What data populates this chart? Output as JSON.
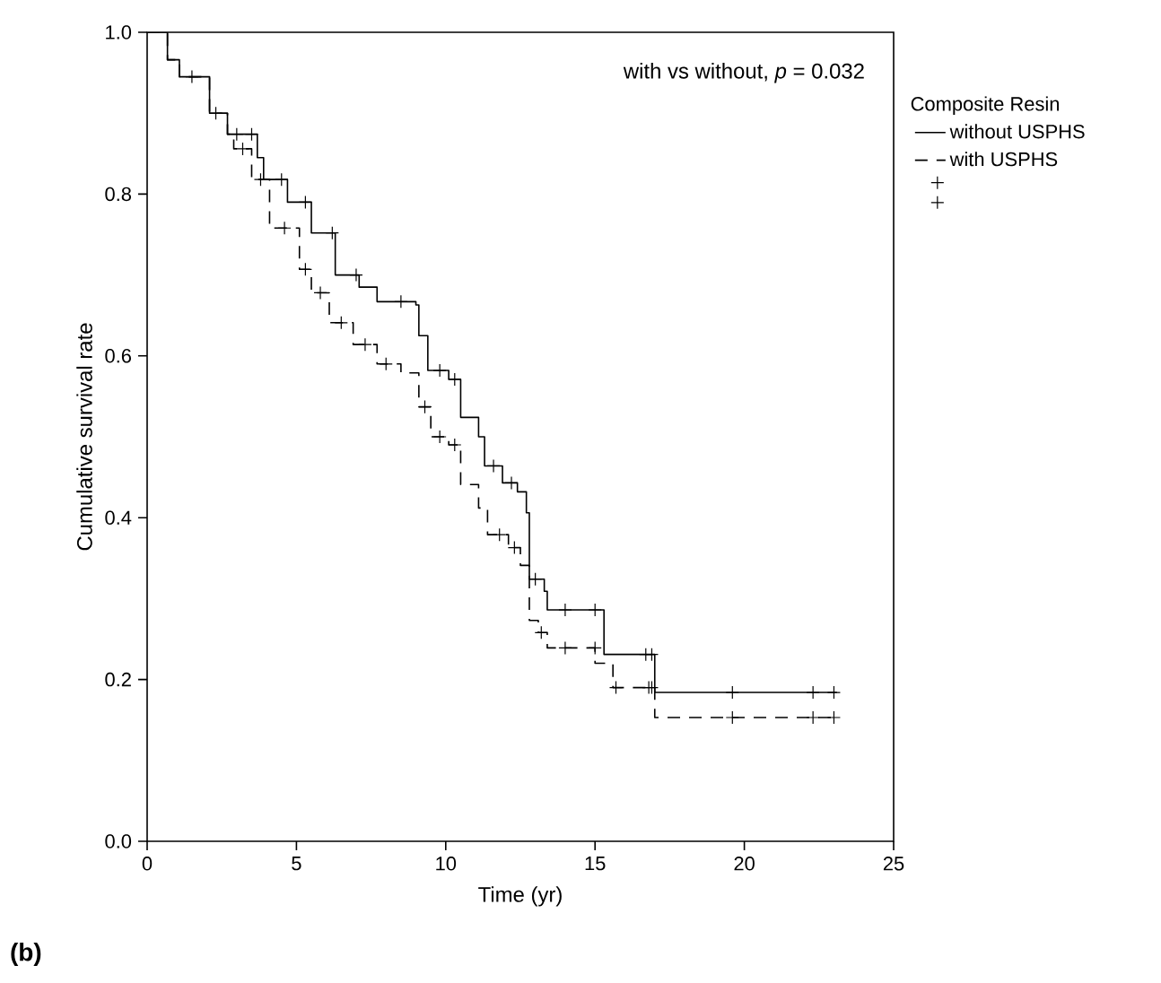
{
  "chart_data": {
    "type": "step",
    "xlabel": "Time (yr)",
    "ylabel": "Cumulative survival rate",
    "legend_title": "Composite Resin",
    "xlim": [
      0,
      25
    ],
    "xticks": [
      0,
      5,
      10,
      15,
      20,
      25
    ],
    "ylim": [
      0,
      1
    ],
    "yticks": [
      {
        "value": 0,
        "label": "0.0"
      },
      {
        "value": 0.2,
        "label": "0.2"
      },
      {
        "value": 0.4,
        "label": "0.4"
      },
      {
        "value": 0.6,
        "label": "0.6"
      },
      {
        "value": 0.8,
        "label": "0.8"
      },
      {
        "value": 1,
        "label": "1.0"
      }
    ],
    "legend": "right",
    "grid": false,
    "annotations": [
      "with vs without, *p* = 0.032",
      "(b)"
    ],
    "series": [
      {
        "name": "without USPHS",
        "color": "#000000",
        "line_style": "solid",
        "x": [
          0,
          0.68,
          1.08,
          2.09,
          2.69,
          3.69,
          3.9,
          4.7,
          5.5,
          6.3,
          7.1,
          7.7,
          9.0,
          9.1,
          9.4,
          10.1,
          10.5,
          11.1,
          11.3,
          11.9,
          12.4,
          12.7,
          12.8,
          13.3,
          13.4,
          15.3,
          17.0,
          23.1
        ],
        "values": [
          1.0,
          0.966,
          0.945,
          0.9,
          0.874,
          0.845,
          0.818,
          0.79,
          0.752,
          0.7,
          0.685,
          0.667,
          0.663,
          0.625,
          0.582,
          0.571,
          0.524,
          0.5,
          0.464,
          0.443,
          0.432,
          0.406,
          0.324,
          0.309,
          0.286,
          0.231,
          0.184,
          0.184
        ]
      },
      {
        "name": "with USPHS",
        "color": "#000000",
        "line_style": "dashed",
        "x": [
          0,
          0.68,
          1.08,
          2.09,
          2.69,
          2.9,
          3.5,
          4.1,
          5.1,
          5.5,
          6.1,
          6.9,
          7.7,
          8.5,
          9.1,
          9.5,
          10.1,
          10.5,
          11.1,
          11.4,
          12.1,
          12.5,
          12.8,
          13.1,
          13.4,
          15.0,
          15.6,
          17.0,
          23.1
        ],
        "values": [
          1.0,
          0.966,
          0.945,
          0.9,
          0.874,
          0.856,
          0.818,
          0.758,
          0.707,
          0.678,
          0.641,
          0.614,
          0.59,
          0.579,
          0.537,
          0.5,
          0.49,
          0.441,
          0.412,
          0.379,
          0.363,
          0.341,
          0.273,
          0.258,
          0.239,
          0.22,
          0.19,
          0.153,
          0.153
        ]
      },
      {
        "type": "scatter",
        "marker": "cross",
        "color": "#000000",
        "x": [
          1.5,
          2.3,
          3.0,
          3.5,
          4.5,
          5.3,
          6.2,
          7.0,
          8.5,
          9.8,
          10.3,
          11.6,
          12.2,
          13.0,
          14.0,
          15.0,
          16.7,
          16.9,
          19.6,
          22.3,
          23.0
        ],
        "values": [
          0.945,
          0.9,
          0.874,
          0.874,
          0.818,
          0.79,
          0.752,
          0.7,
          0.667,
          0.582,
          0.571,
          0.464,
          0.443,
          0.324,
          0.286,
          0.286,
          0.231,
          0.231,
          0.184,
          0.184,
          0.184
        ]
      },
      {
        "type": "scatter",
        "marker": "cross",
        "color": "#000000",
        "x": [
          3.2,
          3.8,
          4.6,
          5.3,
          5.8,
          6.5,
          7.3,
          8.0,
          9.3,
          9.8,
          10.3,
          11.8,
          12.3,
          13.2,
          14.0,
          15.0,
          15.7,
          16.8,
          16.9,
          19.6,
          22.3,
          23.0
        ],
        "values": [
          0.856,
          0.818,
          0.758,
          0.707,
          0.678,
          0.641,
          0.614,
          0.59,
          0.537,
          0.5,
          0.49,
          0.379,
          0.363,
          0.258,
          0.239,
          0.239,
          0.19,
          0.19,
          0.19,
          0.153,
          0.153,
          0.153
        ]
      }
    ]
  }
}
